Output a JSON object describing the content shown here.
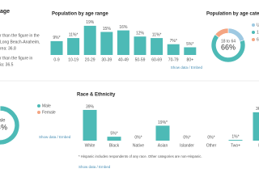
{
  "sidebar": {
    "heading": "age",
    "lines": [
      "r than the figure in the",
      "Long Beach-Anaheim,",
      "rea: 36.8",
      "r than the figure in",
      "ia: 36.5"
    ]
  },
  "links": [
    "Show data / Embed",
    "Show data / Embed",
    "Show data / Embed"
  ],
  "chart_data": [
    {
      "type": "bar",
      "title": "Population by age range",
      "categories": [
        "0-9",
        "10-19",
        "20-29",
        "30-39",
        "40-49",
        "50-59",
        "60-69",
        "70-79",
        "80+"
      ],
      "values": [
        9,
        11,
        19,
        15,
        16,
        12,
        11,
        7,
        5
      ],
      "value_labels": [
        "9%*",
        "11%*",
        "19%",
        "15%",
        "16%",
        "12%",
        "11%*",
        "7%*",
        "5%*"
      ],
      "color": "#4dbab6",
      "ylim": [
        0,
        20
      ]
    },
    {
      "type": "pie",
      "title": "Population by age category",
      "categories": [
        "U",
        "18",
        "6"
      ],
      "values": [
        20,
        66,
        14
      ],
      "colors": [
        "#9ec9e2",
        "#4dbab6",
        "#f4a582"
      ],
      "center_name": "18 to 64",
      "center_label": "66%"
    },
    {
      "type": "pie",
      "categories": [
        "Male",
        "Female"
      ],
      "values": [
        54,
        46
      ],
      "colors": [
        "#4dbab6",
        "#f4a582"
      ],
      "center_label": "54%"
    },
    {
      "type": "bar",
      "title": "Race & Ethnicity",
      "categories": [
        "White",
        "Black",
        "Native",
        "Asian",
        "Islander",
        "Other",
        "Two+",
        "H"
      ],
      "values": [
        39,
        5,
        0,
        19,
        0,
        0,
        1,
        36
      ],
      "value_labels": [
        "39%",
        "5%*",
        "0%*",
        "19%*",
        "0%*",
        "0%*",
        "1%*",
        "36%"
      ],
      "color": "#4dbab6",
      "ylim": [
        0,
        40
      ],
      "note": "* Hispanic includes respondents of any race. Other categories are non-Hispanic."
    }
  ]
}
